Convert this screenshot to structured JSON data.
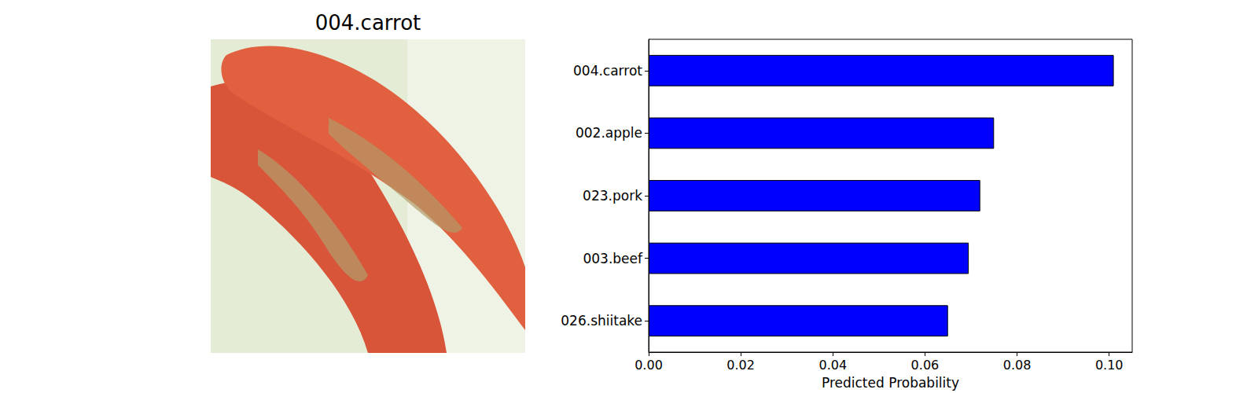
{
  "image": {
    "title": "004.carrot"
  },
  "chart_data": {
    "type": "bar",
    "orientation": "horizontal",
    "categories": [
      "004.carrot",
      "002.apple",
      "023.pork",
      "003.beef",
      "026.shiitake"
    ],
    "values": [
      0.101,
      0.075,
      0.072,
      0.0695,
      0.065
    ],
    "color": "#0000ff",
    "x_label": "Predicted Probability",
    "xlim": [
      0,
      0.105
    ],
    "xticks": [
      {
        "value": 0,
        "label": "0.00"
      },
      {
        "value": 0.02,
        "label": "0.02"
      },
      {
        "value": 0.04,
        "label": "0.04"
      },
      {
        "value": 0.06,
        "label": "0.06"
      },
      {
        "value": 0.08,
        "label": "0.08"
      },
      {
        "value": 0.1,
        "label": "0.10"
      }
    ],
    "grid": false
  }
}
